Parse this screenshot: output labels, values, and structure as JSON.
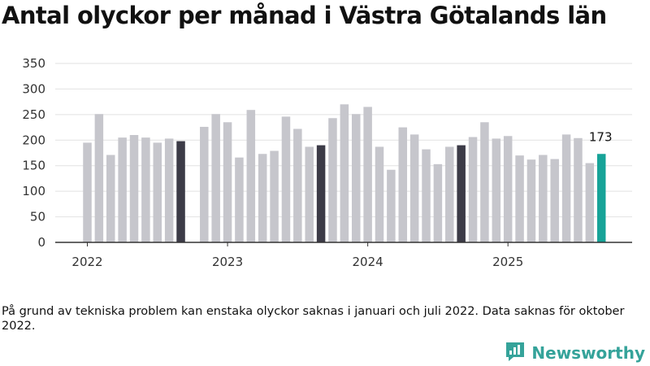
{
  "title": "Antal olyckor per månad i Västra Götalands län",
  "footnote": "På grund av tekniska problem kan enstaka olyckor saknas i januari och juli 2022. Data saknas för oktober 2022.",
  "brand": {
    "name": "Newsworthy",
    "icon": "newsworthy-logo-icon"
  },
  "colors": {
    "bar": "#c6c6cc",
    "highlight_year": "#3c3b47",
    "latest": "#17a398",
    "grid": "#e2e2e2",
    "axis": "#333333",
    "brand": "#35a39a"
  },
  "chart_data": {
    "type": "bar",
    "title": "Antal olyckor per månad i Västra Götalands län",
    "xlabel": "",
    "ylabel": "",
    "ylim": [
      0,
      350
    ],
    "yticks": [
      0,
      50,
      100,
      150,
      200,
      250,
      300,
      350
    ],
    "ytick_labels": [
      "0",
      "50",
      "100",
      "150",
      "200",
      "250",
      "300",
      "350"
    ],
    "xtick_labels": [
      "2022",
      "2023",
      "2024",
      "2025"
    ],
    "xtick_indices": [
      0,
      12,
      24,
      36
    ],
    "categories": [
      "2022-01",
      "2022-02",
      "2022-03",
      "2022-04",
      "2022-05",
      "2022-06",
      "2022-07",
      "2022-08",
      "2022-09",
      "2022-10",
      "2022-11",
      "2022-12",
      "2023-01",
      "2023-02",
      "2023-03",
      "2023-04",
      "2023-05",
      "2023-06",
      "2023-07",
      "2023-08",
      "2023-09",
      "2023-10",
      "2023-11",
      "2023-12",
      "2024-01",
      "2024-02",
      "2024-03",
      "2024-04",
      "2024-05",
      "2024-06",
      "2024-07",
      "2024-08",
      "2024-09",
      "2024-10",
      "2024-11",
      "2024-12",
      "2025-01",
      "2025-02",
      "2025-03",
      "2025-04",
      "2025-05",
      "2025-06",
      "2025-07",
      "2025-08",
      "2025-09"
    ],
    "values": [
      195,
      251,
      171,
      205,
      210,
      205,
      195,
      203,
      198,
      null,
      226,
      251,
      235,
      166,
      259,
      173,
      179,
      246,
      222,
      187,
      190,
      243,
      270,
      251,
      265,
      187,
      142,
      225,
      211,
      182,
      153,
      187,
      190,
      206,
      235,
      203,
      208,
      170,
      162,
      171,
      163,
      211,
      204,
      155,
      173
    ],
    "highlight_indices": [
      8,
      20,
      32
    ],
    "latest_index": 44,
    "annotation": "173"
  }
}
